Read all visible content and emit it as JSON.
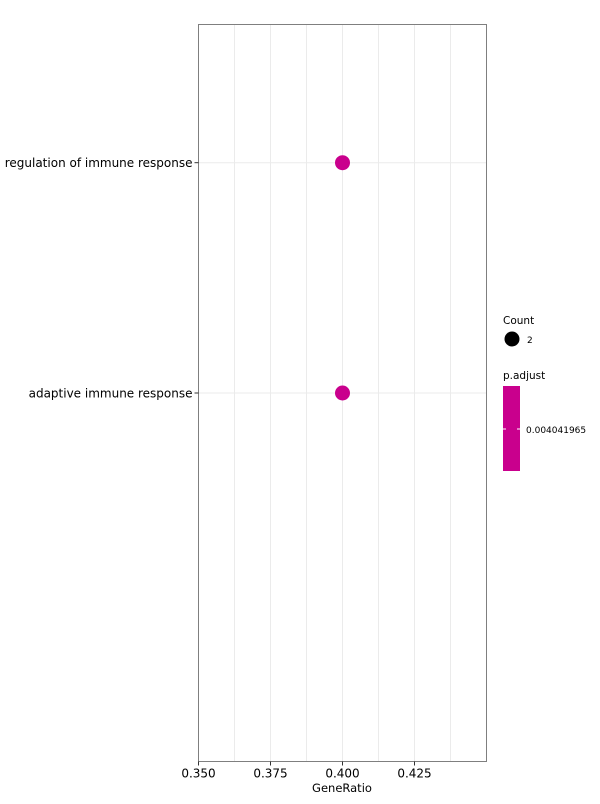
{
  "chart_data": {
    "type": "scatter",
    "xlabel": "GeneRatio",
    "ylabel": "",
    "xlim": [
      0.35,
      0.45
    ],
    "x_ticks": [
      0.35,
      0.375,
      0.4,
      0.425
    ],
    "x_tick_labels": [
      "0.350",
      "0.375",
      "0.400",
      "0.425"
    ],
    "categories": [
      "regulation of immune response",
      "adaptive immune response"
    ],
    "points": [
      {
        "term": "regulation of immune response",
        "gene_ratio": 0.4,
        "count": 2,
        "p_adjust": 0.004041965
      },
      {
        "term": "adaptive immune response",
        "gene_ratio": 0.4,
        "count": 2,
        "p_adjust": 0.004041965
      }
    ],
    "grid": true,
    "legend_position": "right",
    "legend": {
      "size_title": "Count",
      "size_label": "2",
      "color_title": "p.adjust",
      "color_label": "0.004041965"
    },
    "colors": {
      "point": "#c9008d",
      "panel_border": "#7f7f7f",
      "grid": "#ebebeb",
      "count_marker": "#000000"
    }
  }
}
